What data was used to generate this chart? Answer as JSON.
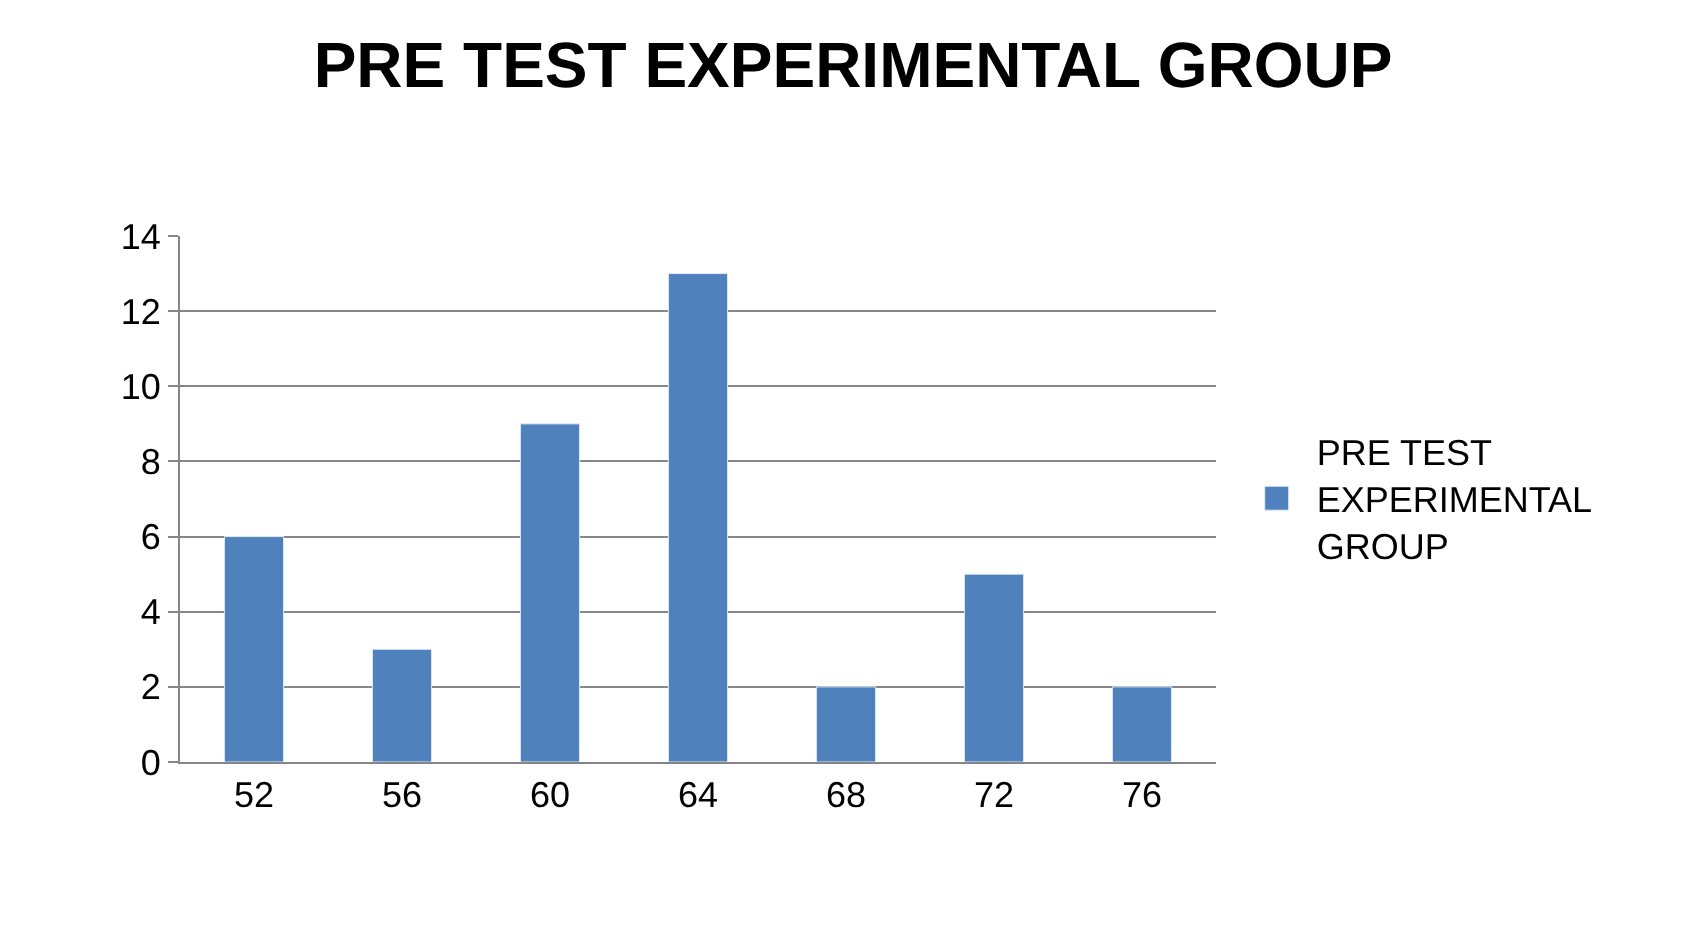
{
  "chart_data": {
    "type": "bar",
    "title": "PRE TEST EXPERIMENTAL GROUP",
    "categories": [
      "52",
      "56",
      "60",
      "64",
      "68",
      "72",
      "76"
    ],
    "series": [
      {
        "name": "PRE TEST EXPERIMENTAL GROUP",
        "color": "#4f81bd",
        "values": [
          6,
          3,
          9,
          13,
          2,
          5,
          2
        ]
      }
    ],
    "ylim": [
      0,
      14
    ],
    "yticks": [
      0,
      2,
      4,
      6,
      8,
      10,
      12,
      14
    ],
    "grid": "y",
    "legend": "right"
  }
}
